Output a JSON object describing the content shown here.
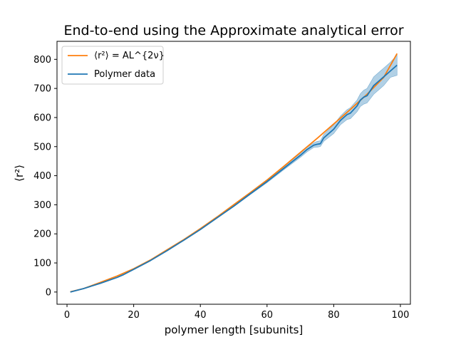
{
  "chart_data": {
    "type": "line",
    "title": "End-to-end using the Approximate analytical error",
    "xlabel": "polymer length [subunits]",
    "ylabel": "⟨r²⟩",
    "xlim": [
      -3,
      103
    ],
    "ylim": [
      -42,
      862
    ],
    "xticks": [
      0,
      20,
      40,
      60,
      80,
      100
    ],
    "yticks": [
      0,
      100,
      200,
      300,
      400,
      500,
      600,
      700,
      800
    ],
    "grid": false,
    "legend_position": "top-left",
    "series": [
      {
        "name": "⟨r²⟩ = AL^{2ν}",
        "color": "#ff7f0e",
        "x": [
          1,
          5,
          10,
          15,
          20,
          25,
          30,
          35,
          40,
          45,
          50,
          55,
          60,
          65,
          70,
          75,
          80,
          85,
          90,
          95,
          99
        ],
        "y": [
          1,
          12,
          33,
          55,
          80,
          110,
          145,
          180,
          218,
          258,
          300,
          342,
          385,
          432,
          480,
          528,
          578,
          628,
          680,
          738,
          820
        ]
      },
      {
        "name": "Polymer data",
        "color": "#1f77b4",
        "x": [
          1,
          5,
          10,
          15,
          17,
          20,
          25,
          30,
          35,
          40,
          45,
          50,
          55,
          60,
          65,
          70,
          72,
          74,
          75,
          76,
          77,
          80,
          82,
          84,
          85,
          87,
          88,
          89,
          90,
          92,
          94,
          95,
          97,
          99
        ],
        "y": [
          0,
          12,
          30,
          50,
          60,
          78,
          108,
          142,
          178,
          215,
          255,
          295,
          338,
          380,
          425,
          470,
          490,
          505,
          508,
          510,
          530,
          560,
          590,
          610,
          615,
          640,
          660,
          670,
          675,
          710,
          730,
          740,
          760,
          780
        ],
        "band_lower": [
          0,
          12,
          30,
          50,
          60,
          78,
          108,
          142,
          178,
          214,
          254,
          293,
          335,
          376,
          420,
          463,
          482,
          497,
          498,
          500,
          518,
          545,
          575,
          593,
          596,
          620,
          638,
          646,
          650,
          680,
          700,
          710,
          738,
          745
        ],
        "band_upper": [
          0,
          12,
          30,
          50,
          60,
          78,
          108,
          142,
          178,
          216,
          256,
          297,
          341,
          384,
          430,
          477,
          498,
          513,
          518,
          520,
          542,
          575,
          605,
          627,
          634,
          660,
          682,
          694,
          700,
          740,
          760,
          770,
          790,
          815
        ]
      }
    ]
  }
}
